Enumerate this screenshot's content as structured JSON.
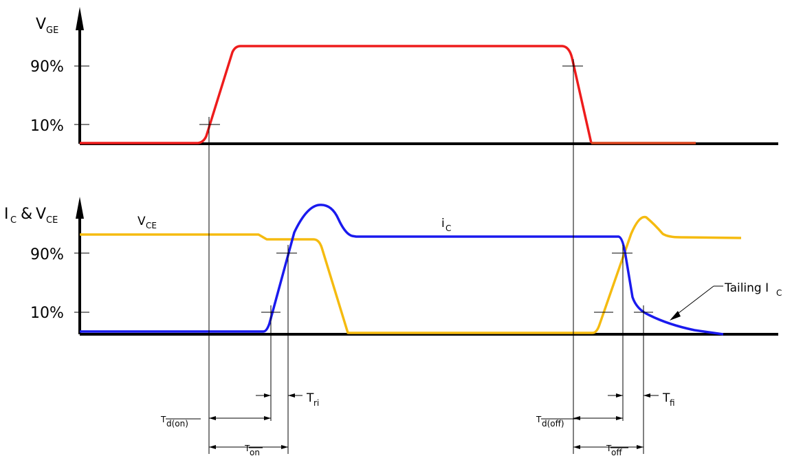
{
  "top_panel": {
    "y_axis_label": "V",
    "y_axis_subscript": "GE",
    "tick_90": "90%",
    "tick_10": "10%"
  },
  "bottom_panel": {
    "y_axis_label_i": "I",
    "y_axis_label_i_sub": "C",
    "y_axis_label_amp": "&",
    "y_axis_label_v": "V",
    "y_axis_label_v_sub": "CE",
    "tick_90": "90%",
    "tick_10": "10%",
    "vce_label": "V",
    "vce_label_sub": "CE",
    "ic_label": "i",
    "ic_label_sub": "C",
    "tailing_label": "Tailing I",
    "tailing_label_sub": "C"
  },
  "timing": {
    "td_on": "T",
    "td_on_sub": "d(on)",
    "t_ri": "T",
    "t_ri_sub": "ri",
    "t_on": "T",
    "t_on_sub": "on",
    "td_off": "T",
    "td_off_sub": "d(off)",
    "t_fi": "T",
    "t_fi_sub": "fi",
    "t_off": "T",
    "t_off_sub": "off"
  },
  "colors": {
    "vge": "#ee1c1c",
    "vge_tail": "#d9431c",
    "ic": "#1a1aee",
    "vce": "#f5bb10",
    "axis": "#000000"
  }
}
